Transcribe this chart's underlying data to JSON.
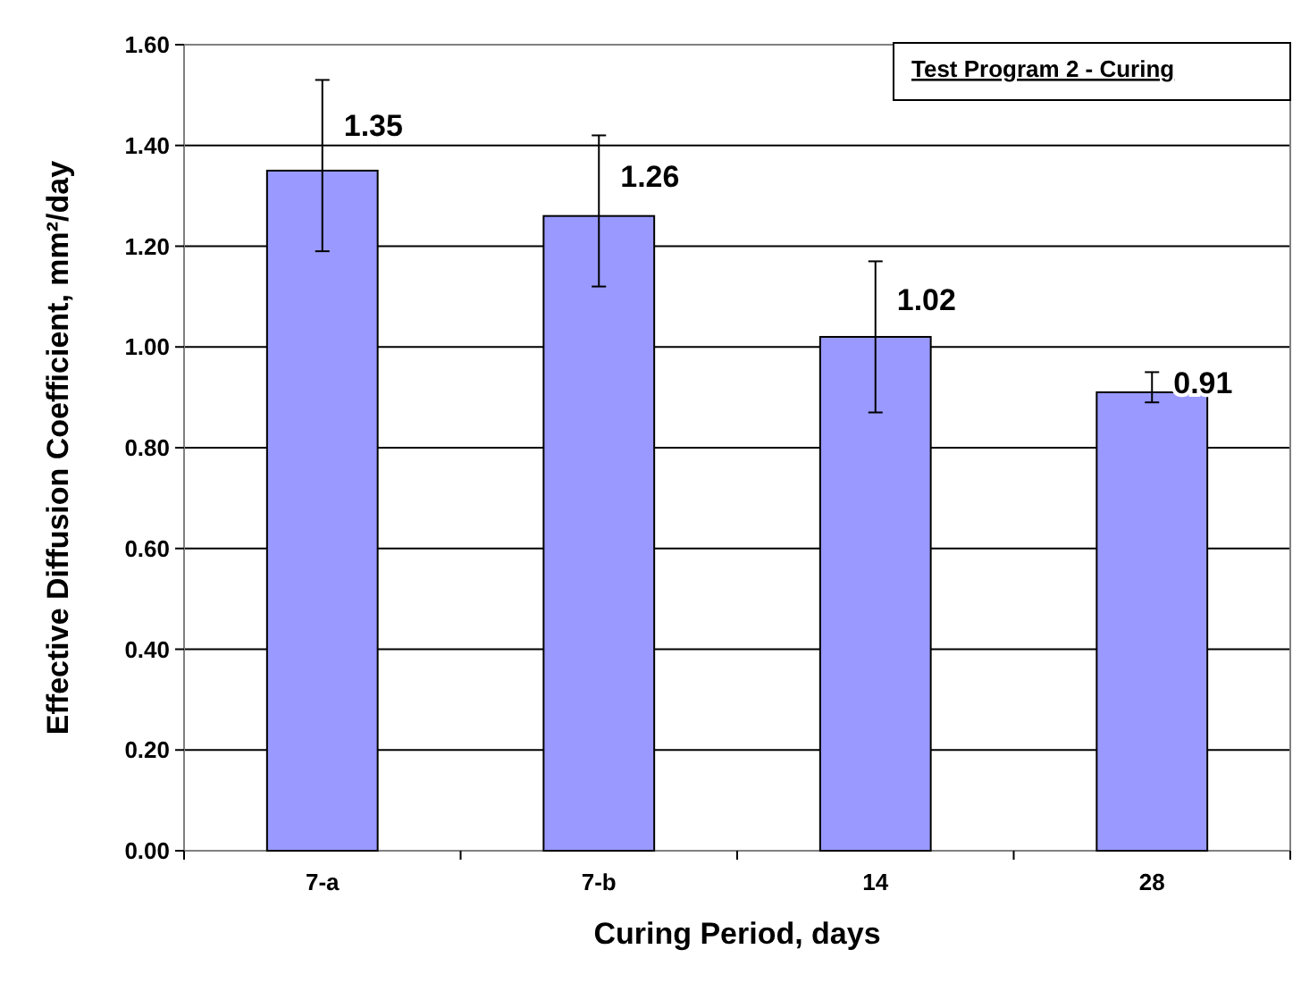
{
  "chart_data": {
    "type": "bar",
    "xlabel": "Curing Period, days",
    "ylabel": "Effective Diffusion Coefficient, mm²/day",
    "categories": [
      "7-a",
      "7-b",
      "14",
      "28"
    ],
    "values": [
      1.35,
      1.26,
      1.02,
      0.91
    ],
    "errors": [
      [
        1.19,
        1.53
      ],
      [
        1.12,
        1.42
      ],
      [
        0.87,
        1.17
      ],
      [
        0.89,
        0.95
      ]
    ],
    "color": "#9999ff",
    "data_labels": true,
    "grid": "y",
    "ylim": [
      0,
      1.6
    ],
    "yticks": [
      {
        "value": 0,
        "label": "0.00"
      },
      {
        "value": 0.2,
        "label": "0.20"
      },
      {
        "value": 0.4,
        "label": "0.40"
      },
      {
        "value": 0.6,
        "label": "0.60"
      },
      {
        "value": 0.8,
        "label": "0.80"
      },
      {
        "value": 1,
        "label": "1.00"
      },
      {
        "value": 1.2,
        "label": "1.20"
      },
      {
        "value": 1.4,
        "label": "1.40"
      },
      {
        "value": 1.6,
        "label": "1.60"
      }
    ],
    "annotations": [
      "Test Program 2 - Curing"
    ]
  }
}
